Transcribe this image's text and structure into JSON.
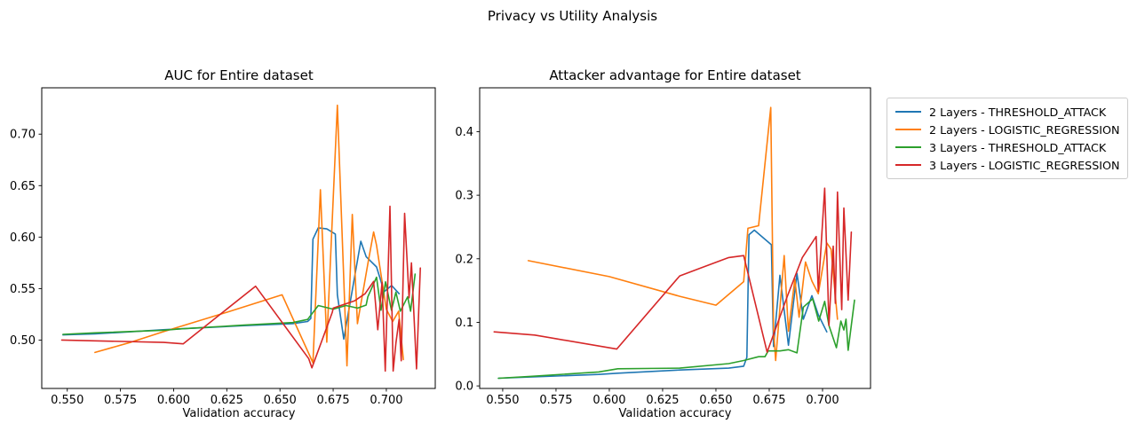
{
  "figure": {
    "suptitle": "Privacy vs Utility Analysis",
    "background_color": "#ffffff",
    "text_color": "#000000"
  },
  "legend": {
    "position": "outside-right-top",
    "border_color": "#cccccc",
    "entries": [
      {
        "label": "2 Layers - THRESHOLD_ATTACK",
        "color": "#1f77b4"
      },
      {
        "label": "2 Layers - LOGISTIC_REGRESSION",
        "color": "#ff7f0e"
      },
      {
        "label": "3 Layers - THRESHOLD_ATTACK",
        "color": "#2ca02c"
      },
      {
        "label": "3 Layers - LOGISTIC_REGRESSION",
        "color": "#d62728"
      }
    ]
  },
  "chart_data": [
    {
      "type": "line",
      "title": "AUC for Entire dataset",
      "xlabel": "Validation accuracy",
      "ylabel": "",
      "grid": false,
      "xlim": [
        0.538,
        0.723
      ],
      "ylim": [
        0.453,
        0.745
      ],
      "xticks": {
        "values": [
          0.55,
          0.575,
          0.6,
          0.625,
          0.65,
          0.675,
          0.7
        ],
        "labels": [
          "0.550",
          "0.575",
          "0.600",
          "0.625",
          "0.650",
          "0.675",
          "0.700"
        ]
      },
      "yticks": {
        "values": [
          0.5,
          0.55,
          0.6,
          0.65,
          0.7
        ],
        "labels": [
          "0.50",
          "0.55",
          "0.60",
          "0.65",
          "0.70"
        ]
      },
      "series": [
        {
          "name": "2 Layers - THRESHOLD_ATTACK",
          "color": "#1f77b4",
          "points": [
            [
              0.548,
              0.505
            ],
            [
              0.563,
              0.506
            ],
            [
              0.58,
              0.508
            ],
            [
              0.595,
              0.51
            ],
            [
              0.604,
              0.511
            ],
            [
              0.633,
              0.514
            ],
            [
              0.656,
              0.516
            ],
            [
              0.663,
              0.518
            ],
            [
              0.6645,
              0.521
            ],
            [
              0.6655,
              0.598
            ],
            [
              0.668,
              0.609
            ],
            [
              0.672,
              0.608
            ],
            [
              0.676,
              0.603
            ],
            [
              0.677,
              0.544
            ],
            [
              0.68,
              0.501
            ],
            [
              0.688,
              0.596
            ],
            [
              0.6905,
              0.581
            ],
            [
              0.6954,
              0.571
            ],
            [
              0.699,
              0.547
            ],
            [
              0.7025,
              0.553
            ],
            [
              0.706,
              0.545
            ]
          ]
        },
        {
          "name": "2 Layers - LOGISTIC_REGRESSION",
          "color": "#ff7f0e",
          "points": [
            [
              0.563,
              0.488
            ],
            [
              0.58,
              0.498
            ],
            [
              0.595,
              0.508
            ],
            [
              0.625,
              0.527
            ],
            [
              0.651,
              0.544
            ],
            [
              0.6655,
              0.478
            ],
            [
              0.669,
              0.646
            ],
            [
              0.672,
              0.498
            ],
            [
              0.677,
              0.728
            ],
            [
              0.6815,
              0.475
            ],
            [
              0.684,
              0.622
            ],
            [
              0.6864,
              0.516
            ],
            [
              0.6913,
              0.574
            ],
            [
              0.694,
              0.605
            ],
            [
              0.6954,
              0.592
            ],
            [
              0.7,
              0.53
            ],
            [
              0.703,
              0.518
            ],
            [
              0.7058,
              0.528
            ],
            [
              0.708,
              0.481
            ]
          ]
        },
        {
          "name": "3 Layers - THRESHOLD_ATTACK",
          "color": "#2ca02c",
          "points": [
            [
              0.548,
              0.5055
            ],
            [
              0.563,
              0.507
            ],
            [
              0.595,
              0.5095
            ],
            [
              0.604,
              0.511
            ],
            [
              0.633,
              0.5145
            ],
            [
              0.656,
              0.517
            ],
            [
              0.663,
              0.52
            ],
            [
              0.668,
              0.5335
            ],
            [
              0.675,
              0.53
            ],
            [
              0.681,
              0.5335
            ],
            [
              0.6865,
              0.531
            ],
            [
              0.6905,
              0.534
            ],
            [
              0.6913,
              0.542
            ],
            [
              0.6954,
              0.561
            ],
            [
              0.6975,
              0.529
            ],
            [
              0.6996,
              0.5565
            ],
            [
              0.7024,
              0.529
            ],
            [
              0.7045,
              0.5465
            ],
            [
              0.7066,
              0.528
            ],
            [
              0.71,
              0.542
            ],
            [
              0.7114,
              0.528
            ],
            [
              0.7135,
              0.564
            ]
          ]
        },
        {
          "name": "3 Layers - LOGISTIC_REGRESSION",
          "color": "#d62728",
          "points": [
            [
              0.5474,
              0.5
            ],
            [
              0.5954,
              0.4977
            ],
            [
              0.6045,
              0.4963
            ],
            [
              0.6385,
              0.5523
            ],
            [
              0.6635,
              0.482
            ],
            [
              0.665,
              0.473
            ],
            [
              0.6746,
              0.527
            ],
            [
              0.675,
              0.531
            ],
            [
              0.685,
              0.538
            ],
            [
              0.69,
              0.545
            ],
            [
              0.694,
              0.557
            ],
            [
              0.696,
              0.51
            ],
            [
              0.698,
              0.556
            ],
            [
              0.6995,
              0.47
            ],
            [
              0.7017,
              0.63
            ],
            [
              0.7032,
              0.47
            ],
            [
              0.7045,
              0.497
            ],
            [
              0.706,
              0.52
            ],
            [
              0.707,
              0.48
            ],
            [
              0.7086,
              0.623
            ],
            [
              0.7107,
              0.541
            ],
            [
              0.7118,
              0.575
            ],
            [
              0.7142,
              0.472
            ],
            [
              0.716,
              0.57
            ]
          ]
        }
      ]
    },
    {
      "type": "line",
      "title": "Attacker advantage for Entire dataset",
      "xlabel": "Validation accuracy",
      "ylabel": "",
      "grid": false,
      "xlim": [
        0.5392,
        0.7225
      ],
      "ylim": [
        -0.004,
        0.469
      ],
      "xticks": {
        "values": [
          0.55,
          0.575,
          0.6,
          0.625,
          0.65,
          0.675,
          0.7
        ],
        "labels": [
          "0.550",
          "0.575",
          "0.600",
          "0.625",
          "0.650",
          "0.675",
          "0.700"
        ]
      },
      "yticks": {
        "values": [
          0.0,
          0.1,
          0.2,
          0.3,
          0.4
        ],
        "labels": [
          "0.0",
          "0.1",
          "0.2",
          "0.3",
          "0.4"
        ]
      },
      "series": [
        {
          "name": "2 Layers - THRESHOLD_ATTACK",
          "color": "#1f77b4",
          "points": [
            [
              0.548,
              0.012
            ],
            [
              0.563,
              0.014
            ],
            [
              0.595,
              0.018
            ],
            [
              0.604,
              0.02
            ],
            [
              0.633,
              0.025
            ],
            [
              0.656,
              0.028
            ],
            [
              0.663,
              0.031
            ],
            [
              0.6645,
              0.045
            ],
            [
              0.6655,
              0.238
            ],
            [
              0.668,
              0.245
            ],
            [
              0.676,
              0.222
            ],
            [
              0.677,
              0.062
            ],
            [
              0.68,
              0.174
            ],
            [
              0.684,
              0.064
            ],
            [
              0.688,
              0.177
            ],
            [
              0.691,
              0.105
            ],
            [
              0.695,
              0.142
            ],
            [
              0.698,
              0.112
            ],
            [
              0.702,
              0.085
            ]
          ]
        },
        {
          "name": "2 Layers - LOGISTIC_REGRESSION",
          "color": "#ff7f0e",
          "points": [
            [
              0.562,
              0.197
            ],
            [
              0.6,
              0.172
            ],
            [
              0.633,
              0.141
            ],
            [
              0.65,
              0.127
            ],
            [
              0.663,
              0.164
            ],
            [
              0.665,
              0.248
            ],
            [
              0.67,
              0.252
            ],
            [
              0.6757,
              0.438
            ],
            [
              0.677,
              0.09
            ],
            [
              0.678,
              0.04
            ],
            [
              0.682,
              0.205
            ],
            [
              0.684,
              0.086
            ],
            [
              0.687,
              0.168
            ],
            [
              0.689,
              0.108
            ],
            [
              0.692,
              0.195
            ],
            [
              0.695,
              0.165
            ],
            [
              0.698,
              0.145
            ],
            [
              0.702,
              0.225
            ],
            [
              0.704,
              0.215
            ],
            [
              0.707,
              0.105
            ]
          ]
        },
        {
          "name": "3 Layers - THRESHOLD_ATTACK",
          "color": "#2ca02c",
          "points": [
            [
              0.548,
              0.012
            ],
            [
              0.563,
              0.015
            ],
            [
              0.595,
              0.022
            ],
            [
              0.604,
              0.027
            ],
            [
              0.633,
              0.028
            ],
            [
              0.656,
              0.035
            ],
            [
              0.663,
              0.04
            ],
            [
              0.67,
              0.046
            ],
            [
              0.673,
              0.046
            ],
            [
              0.6745,
              0.055
            ],
            [
              0.68,
              0.055
            ],
            [
              0.684,
              0.057
            ],
            [
              0.688,
              0.052
            ],
            [
              0.691,
              0.124
            ],
            [
              0.6954,
              0.137
            ],
            [
              0.6982,
              0.102
            ],
            [
              0.701,
              0.133
            ],
            [
              0.703,
              0.095
            ],
            [
              0.7065,
              0.06
            ],
            [
              0.7086,
              0.102
            ],
            [
              0.71,
              0.088
            ],
            [
              0.711,
              0.105
            ],
            [
              0.712,
              0.056
            ],
            [
              0.715,
              0.135
            ]
          ]
        },
        {
          "name": "3 Layers - LOGISTIC_REGRESSION",
          "color": "#d62728",
          "points": [
            [
              0.546,
              0.085
            ],
            [
              0.565,
              0.08
            ],
            [
              0.6035,
              0.058
            ],
            [
              0.633,
              0.173
            ],
            [
              0.6425,
              0.185
            ],
            [
              0.656,
              0.202
            ],
            [
              0.663,
              0.205
            ],
            [
              0.674,
              0.053
            ],
            [
              0.6836,
              0.142
            ],
            [
              0.6905,
              0.202
            ],
            [
              0.697,
              0.235
            ],
            [
              0.698,
              0.149
            ],
            [
              0.701,
              0.311
            ],
            [
              0.7025,
              0.153
            ],
            [
              0.703,
              0.095
            ],
            [
              0.705,
              0.22
            ],
            [
              0.706,
              0.13
            ],
            [
              0.707,
              0.305
            ],
            [
              0.709,
              0.12
            ],
            [
              0.71,
              0.28
            ],
            [
              0.712,
              0.135
            ],
            [
              0.7135,
              0.242
            ]
          ]
        }
      ]
    }
  ]
}
